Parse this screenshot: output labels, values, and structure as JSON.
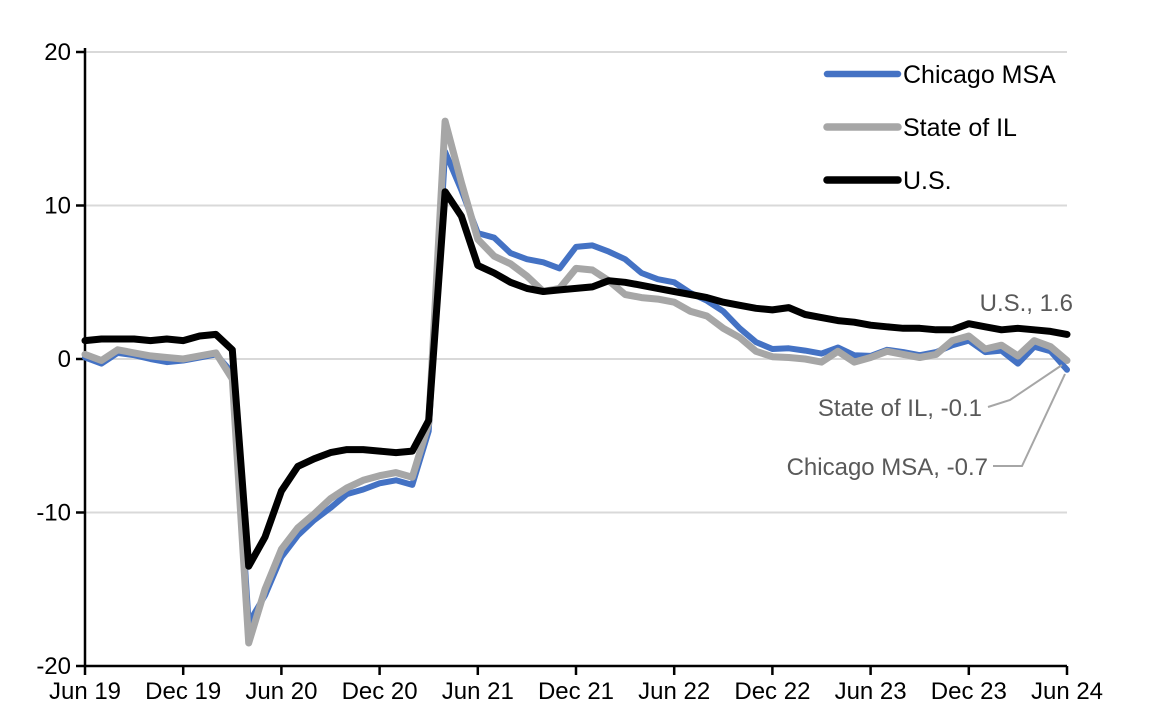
{
  "chart_data": {
    "type": "line",
    "title": "",
    "x_axis": {
      "start": "Jun 2019",
      "end": "Jun 2024",
      "frequency": "monthly",
      "tick_labels": [
        "Jun 19",
        "Dec 19",
        "Jun 20",
        "Dec 20",
        "Jun 21",
        "Dec 21",
        "Jun 22",
        "Dec 22",
        "Jun 23",
        "Dec 23",
        "Jun 24"
      ]
    },
    "y_axis": {
      "min": -20,
      "max": 20,
      "tick_labels": [
        "20",
        "10",
        "0",
        "-10",
        "-20"
      ],
      "tick_values": [
        20,
        10,
        0,
        -10,
        -20
      ],
      "gridlines_at": [
        20,
        10,
        0,
        -10
      ],
      "gridline_color": "#D9D9D9"
    },
    "series": [
      {
        "name": "Chicago MSA",
        "color": "#4472C4",
        "values": [
          0.1,
          -0.3,
          0.4,
          0.25,
          0.0,
          -0.2,
          -0.1,
          0.1,
          0.3,
          -0.9,
          -17.2,
          -15.4,
          -12.9,
          -11.5,
          -10.5,
          -9.7,
          -8.8,
          -8.5,
          -8.1,
          -7.9,
          -8.2,
          -4.7,
          13.5,
          11.0,
          8.2,
          7.9,
          6.9,
          6.5,
          6.3,
          5.9,
          7.3,
          7.4,
          7.0,
          6.5,
          5.6,
          5.2,
          5.0,
          4.3,
          3.8,
          3.1,
          2.0,
          1.1,
          0.65,
          0.7,
          0.55,
          0.35,
          0.75,
          0.25,
          0.2,
          0.6,
          0.45,
          0.25,
          0.45,
          0.9,
          1.2,
          0.45,
          0.55,
          -0.3,
          0.8,
          0.5,
          -0.7
        ]
      },
      {
        "name": "State of IL",
        "color": "#A6A6A6",
        "values": [
          0.3,
          -0.1,
          0.6,
          0.4,
          0.2,
          0.1,
          0.0,
          0.2,
          0.4,
          -1.3,
          -18.5,
          -15.0,
          -12.4,
          -11.0,
          -10.1,
          -9.1,
          -8.4,
          -7.9,
          -7.6,
          -7.4,
          -7.7,
          -4.2,
          15.5,
          11.5,
          7.8,
          6.7,
          6.2,
          5.4,
          4.4,
          4.6,
          5.9,
          5.8,
          5.1,
          4.2,
          4.0,
          3.9,
          3.7,
          3.1,
          2.8,
          2.0,
          1.4,
          0.5,
          0.15,
          0.1,
          0.0,
          -0.2,
          0.5,
          -0.2,
          0.1,
          0.5,
          0.3,
          0.1,
          0.3,
          1.2,
          1.5,
          0.65,
          0.9,
          0.2,
          1.2,
          0.8,
          -0.1
        ]
      },
      {
        "name": "U.S.",
        "color": "#000000",
        "values": [
          1.2,
          1.3,
          1.3,
          1.3,
          1.2,
          1.3,
          1.2,
          1.5,
          1.6,
          0.6,
          -13.5,
          -11.6,
          -8.6,
          -7.0,
          -6.5,
          -6.1,
          -5.9,
          -5.9,
          -6.0,
          -6.1,
          -6.0,
          -4.0,
          10.9,
          9.3,
          6.1,
          5.6,
          5.0,
          4.6,
          4.4,
          4.5,
          4.6,
          4.7,
          5.1,
          5.0,
          4.8,
          4.6,
          4.4,
          4.2,
          4.0,
          3.7,
          3.5,
          3.3,
          3.2,
          3.35,
          2.9,
          2.7,
          2.5,
          2.4,
          2.2,
          2.1,
          2.0,
          2.0,
          1.9,
          1.9,
          2.3,
          2.1,
          1.9,
          2.0,
          1.9,
          1.8,
          1.6
        ]
      }
    ],
    "legend": {
      "position": "top-right",
      "entries": [
        "Chicago MSA",
        "State of IL",
        "U.S."
      ]
    },
    "annotations": [
      {
        "series": "U.S.",
        "text": "U.S., 1.6",
        "leader": false
      },
      {
        "series": "State of IL",
        "text": "State of IL, -0.1",
        "leader": true
      },
      {
        "series": "Chicago MSA",
        "text": "Chicago MSA, -0.7",
        "leader": true
      }
    ],
    "annotation_color": "#595959",
    "leader_line_color": "#A6A6A6",
    "axis_color": "#000000",
    "background_color": "#FFFFFF"
  }
}
